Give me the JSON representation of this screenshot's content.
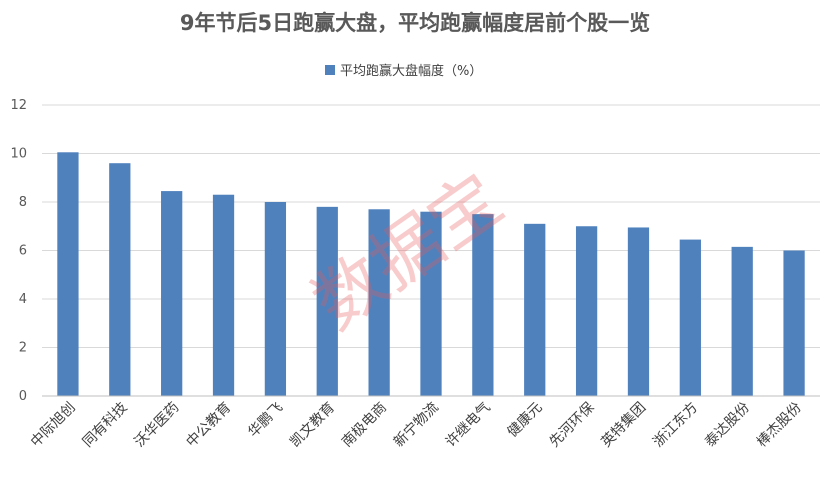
{
  "chart_data": {
    "type": "bar",
    "title": "9年节后5日跑赢大盘，平均跑赢幅度居前个股一览",
    "legend": "平均跑赢大盘幅度（%）",
    "legend_position": "top",
    "categories": [
      "中际旭创",
      "同有科技",
      "沃华医药",
      "中公教育",
      "华鹏飞",
      "凯文教育",
      "南极电商",
      "新宁物流",
      "许继电气",
      "健康元",
      "先河环保",
      "英特集团",
      "浙江东方",
      "泰达股份",
      "棒杰股份"
    ],
    "values": [
      10.05,
      9.6,
      8.45,
      8.3,
      8.0,
      7.8,
      7.7,
      7.6,
      7.5,
      7.1,
      7.0,
      6.95,
      6.45,
      6.15,
      6.0
    ],
    "ylim": [
      0,
      12
    ],
    "yticks": [
      0,
      2,
      4,
      6,
      8,
      10,
      12
    ],
    "grid": true,
    "bar_color": "#4f81bd",
    "grid_color": "#d9d9d9"
  },
  "watermark": "数据宝"
}
